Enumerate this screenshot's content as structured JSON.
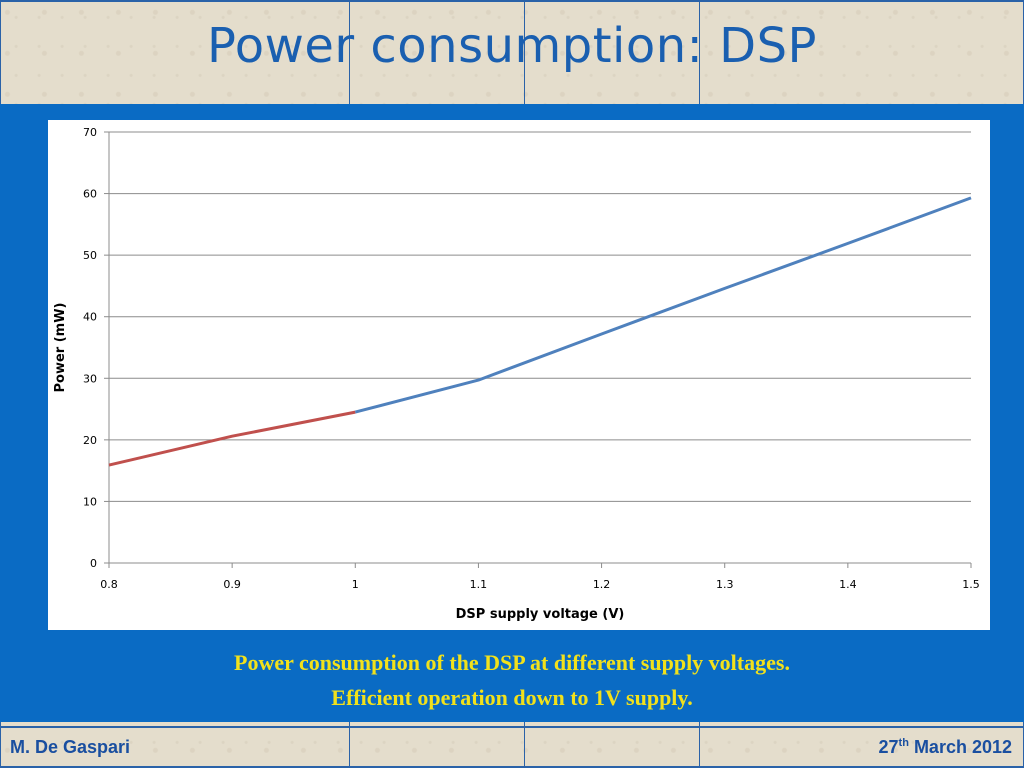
{
  "slide": {
    "title": "Power consumption: DSP",
    "caption_line1": "Power consumption of the DSP at different supply voltages.",
    "caption_line2": "Efficient operation down to 1V supply.",
    "footer_author": "M. De Gaspari",
    "footer_date_day": "27",
    "footer_date_suffix": "th",
    "footer_date_rest": " March 2012"
  },
  "colors": {
    "title": "#1a5fb0",
    "band": "#0a6bc4",
    "caption": "#f2e11b",
    "series_low": "#c0504d",
    "series_high": "#4f81bd"
  },
  "chart_data": {
    "type": "line",
    "xlabel": "DSP supply voltage (V)",
    "ylabel": "Power (mW)",
    "xlim": [
      0.8,
      1.5
    ],
    "ylim": [
      0,
      70
    ],
    "xticks": [
      "0.8",
      "0.9",
      "1",
      "1.1",
      "1.2",
      "1.3",
      "1.4",
      "1.5"
    ],
    "yticks": [
      "0",
      "10",
      "20",
      "30",
      "40",
      "50",
      "60",
      "70"
    ],
    "grid": "horizontal",
    "series": [
      {
        "color": "#c0504d",
        "x": [
          0.8,
          0.9,
          1.0
        ],
        "y": [
          15.9,
          20.6,
          24.5
        ]
      },
      {
        "color": "#4f81bd",
        "x": [
          1.0,
          1.1,
          1.2,
          1.3,
          1.4,
          1.5
        ],
        "y": [
          24.5,
          29.7,
          37.2,
          44.6,
          51.9,
          59.3
        ]
      }
    ]
  }
}
